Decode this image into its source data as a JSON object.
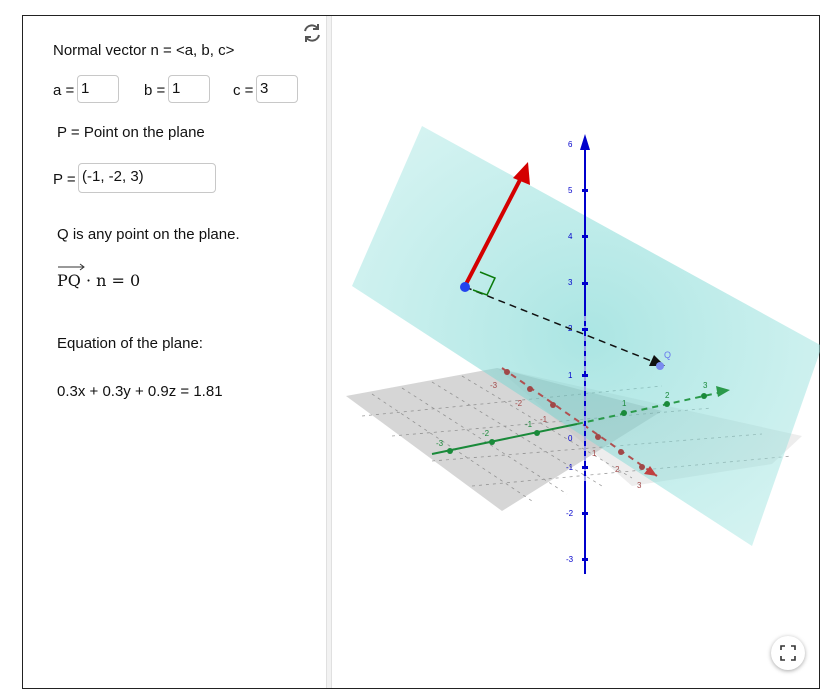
{
  "algebra": {
    "normal_title": "Normal vector n = <a, b, c>",
    "a_label": "a =",
    "a_value": "1",
    "b_label": "b =",
    "b_value": "1",
    "c_label": "c =",
    "c_value": "3",
    "point_caption": "P = Point on the plane",
    "p_label": "P =",
    "p_value": "(-1, -2, 3)",
    "q_caption": "Q is any point on the plane.",
    "dot_vector": "PQ",
    "dot_rest": "· n = 0",
    "equation_title": "Equation of the plane:",
    "equation": "0.3x + 0.3y + 0.9z = 1.81"
  },
  "graphics": {
    "point_q_label": "Q",
    "z_ticks": [
      "6",
      "5",
      "4",
      "3",
      "2",
      "1",
      "0",
      "-1",
      "-2",
      "-3"
    ],
    "x_ticks": [
      "-3",
      "-2",
      "-1",
      "1",
      "2",
      "3"
    ],
    "y_ticks": [
      "-3",
      "-2",
      "-1",
      "1",
      "2",
      "3"
    ],
    "colors": {
      "plane": "#7fd8d4",
      "normal": "#d40000",
      "z_axis": "#0000cc",
      "x_axis": "#b05050",
      "y_axis": "#1a8a3a",
      "point": "#2244ee"
    }
  },
  "icons": {
    "refresh": "refresh-icon",
    "fullscreen": "fullscreen-icon"
  }
}
